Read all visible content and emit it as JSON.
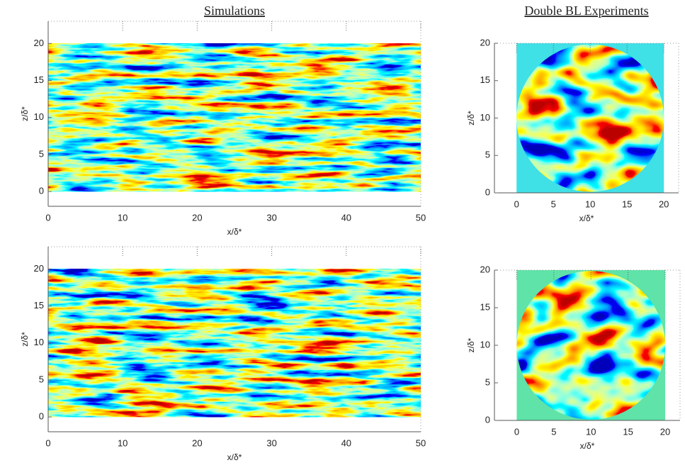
{
  "chart_data": [
    {
      "type": "heatmap",
      "title": "Simulations",
      "xlabel": "x/δ*",
      "ylabel": "z/δ*",
      "xlim": [
        0,
        50
      ],
      "ylim": [
        -2,
        23
      ],
      "xticks": [
        0,
        10,
        20,
        30,
        40,
        50
      ],
      "yticks": [
        0,
        5,
        10,
        15,
        20
      ],
      "field_x": [
        0,
        50
      ],
      "field_z": [
        0,
        20
      ]
    },
    {
      "type": "heatmap",
      "title": "Double BL Experiments",
      "xlabel": "x/δ*",
      "ylabel": "z/δ*",
      "xlim": [
        -3,
        22
      ],
      "ylim": [
        0,
        20
      ],
      "xticks": [
        0,
        5,
        10,
        15,
        20
      ],
      "yticks": [
        0,
        5,
        10,
        15,
        20
      ],
      "field_x": [
        0,
        20
      ],
      "field_z": [
        0,
        20
      ]
    },
    {
      "type": "heatmap",
      "xlabel": "x/δ*",
      "ylabel": "z/δ*",
      "xlim": [
        0,
        50
      ],
      "ylim": [
        -2,
        23
      ],
      "xticks": [
        0,
        10,
        20,
        30,
        40,
        50
      ],
      "yticks": [
        0,
        5,
        10,
        15,
        20
      ],
      "field_x": [
        0,
        50
      ],
      "field_z": [
        0,
        20
      ]
    },
    {
      "type": "heatmap",
      "xlabel": "x/δ*",
      "ylabel": "z/δ*",
      "xlim": [
        -3,
        22
      ],
      "ylim": [
        0,
        20
      ],
      "xticks": [
        0,
        5,
        10,
        15,
        20
      ],
      "yticks": [
        0,
        5,
        10,
        15,
        20
      ],
      "field_x": [
        0,
        20
      ],
      "field_z": [
        0,
        20
      ]
    }
  ]
}
